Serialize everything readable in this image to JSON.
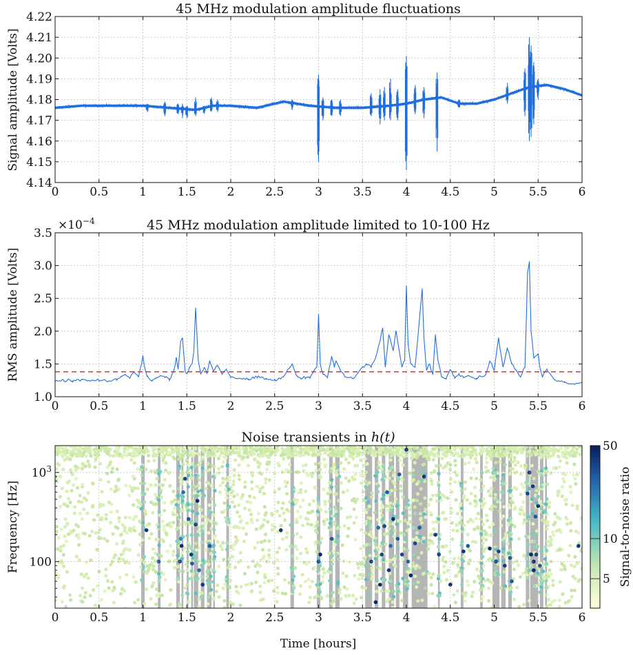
{
  "chart_data": [
    {
      "type": "line",
      "title": "45 MHz modulation amplitude fluctuations",
      "xlabel": "",
      "ylabel": "Signal amplitude [Volts]",
      "xlim": [
        0,
        6
      ],
      "ylim": [
        4.14,
        4.22
      ],
      "x_ticks": [
        "0",
        "0.5",
        "1",
        "1.5",
        "2",
        "2.5",
        "3",
        "3.5",
        "4",
        "4.5",
        "5",
        "5.5",
        "6"
      ],
      "y_ticks": [
        "4.14",
        "4.15",
        "4.16",
        "4.17",
        "4.18",
        "4.19",
        "4.20",
        "4.21",
        "4.22"
      ],
      "grid": true,
      "color": "#1f6fe0",
      "baseline": {
        "x": [
          0,
          0.3,
          0.6,
          0.8,
          1.0,
          1.3,
          1.6,
          1.8,
          2.0,
          2.3,
          2.6,
          2.9,
          3.2,
          3.5,
          3.8,
          4.0,
          4.2,
          4.4,
          4.6,
          4.8,
          5.0,
          5.2,
          5.4,
          5.6,
          5.8,
          6.0
        ],
        "y": [
          4.176,
          4.177,
          4.177,
          4.177,
          4.177,
          4.176,
          4.175,
          4.177,
          4.177,
          4.176,
          4.179,
          4.177,
          4.176,
          4.176,
          4.177,
          4.178,
          4.18,
          4.181,
          4.178,
          4.178,
          4.18,
          4.183,
          4.186,
          4.187,
          4.185,
          4.182
        ]
      },
      "band_width": 0.0012,
      "spikes": [
        {
          "x": 1.05,
          "min": 4.174,
          "max": 4.178
        },
        {
          "x": 1.25,
          "min": 4.172,
          "max": 4.179
        },
        {
          "x": 1.4,
          "min": 4.173,
          "max": 4.178
        },
        {
          "x": 1.45,
          "min": 4.171,
          "max": 4.178
        },
        {
          "x": 1.5,
          "min": 4.171,
          "max": 4.177
        },
        {
          "x": 1.6,
          "min": 4.172,
          "max": 4.181
        },
        {
          "x": 1.7,
          "min": 4.173,
          "max": 4.177
        },
        {
          "x": 1.78,
          "min": 4.174,
          "max": 4.181
        },
        {
          "x": 1.85,
          "min": 4.174,
          "max": 4.18
        },
        {
          "x": 2.7,
          "min": 4.175,
          "max": 4.18
        },
        {
          "x": 3.0,
          "min": 4.15,
          "max": 4.192
        },
        {
          "x": 3.05,
          "min": 4.17,
          "max": 4.181
        },
        {
          "x": 3.15,
          "min": 4.172,
          "max": 4.18
        },
        {
          "x": 3.25,
          "min": 4.172,
          "max": 4.18
        },
        {
          "x": 3.6,
          "min": 4.172,
          "max": 4.183
        },
        {
          "x": 3.7,
          "min": 4.168,
          "max": 4.185
        },
        {
          "x": 3.75,
          "min": 4.17,
          "max": 4.186
        },
        {
          "x": 3.82,
          "min": 4.17,
          "max": 4.19
        },
        {
          "x": 3.9,
          "min": 4.17,
          "max": 4.185
        },
        {
          "x": 4.0,
          "min": 4.146,
          "max": 4.201
        },
        {
          "x": 4.1,
          "min": 4.173,
          "max": 4.187
        },
        {
          "x": 4.2,
          "min": 4.171,
          "max": 4.186
        },
        {
          "x": 4.35,
          "min": 4.155,
          "max": 4.193
        },
        {
          "x": 4.6,
          "min": 4.176,
          "max": 4.18
        },
        {
          "x": 5.15,
          "min": 4.178,
          "max": 4.188
        },
        {
          "x": 5.35,
          "min": 4.172,
          "max": 4.195
        },
        {
          "x": 5.4,
          "min": 4.16,
          "max": 4.21
        },
        {
          "x": 5.42,
          "min": 4.162,
          "max": 4.206
        },
        {
          "x": 5.45,
          "min": 4.168,
          "max": 4.198
        },
        {
          "x": 5.5,
          "min": 4.18,
          "max": 4.19
        }
      ]
    },
    {
      "type": "line",
      "title": "45 MHz modulation amplitude limited to 10-100 Hz",
      "xlabel": "",
      "ylabel": "RMS amplitude [Volts]",
      "y_multiplier": "×10",
      "y_multiplier_exponent": "−4",
      "xlim": [
        0,
        6
      ],
      "ylim": [
        1.0,
        3.5
      ],
      "x_ticks": [
        "0",
        "0.5",
        "1",
        "1.5",
        "2",
        "2.5",
        "3",
        "3.5",
        "4",
        "4.5",
        "5",
        "5.5",
        "6"
      ],
      "y_ticks": [
        "1.0",
        "1.5",
        "2.0",
        "2.5",
        "3.0",
        "3.5"
      ],
      "grid": true,
      "color": "#1f6fe0",
      "threshold": {
        "value": 1.38,
        "color": "#e02020"
      },
      "x": [
        0,
        0.1,
        0.2,
        0.3,
        0.4,
        0.5,
        0.6,
        0.7,
        0.75,
        0.8,
        0.85,
        0.9,
        0.95,
        0.98,
        1.0,
        1.02,
        1.05,
        1.1,
        1.15,
        1.2,
        1.25,
        1.3,
        1.35,
        1.38,
        1.4,
        1.43,
        1.45,
        1.48,
        1.5,
        1.53,
        1.56,
        1.58,
        1.6,
        1.63,
        1.66,
        1.7,
        1.73,
        1.76,
        1.8,
        1.85,
        1.9,
        1.95,
        2.0,
        2.1,
        2.2,
        2.3,
        2.4,
        2.5,
        2.6,
        2.7,
        2.75,
        2.8,
        2.9,
        2.98,
        3.0,
        3.02,
        3.05,
        3.1,
        3.15,
        3.18,
        3.2,
        3.25,
        3.3,
        3.4,
        3.5,
        3.55,
        3.6,
        3.65,
        3.7,
        3.73,
        3.76,
        3.8,
        3.85,
        3.88,
        3.9,
        3.95,
        3.98,
        4.0,
        4.02,
        4.05,
        4.1,
        4.15,
        4.18,
        4.2,
        4.23,
        4.26,
        4.3,
        4.33,
        4.36,
        4.4,
        4.45,
        4.5,
        4.55,
        4.6,
        4.65,
        4.7,
        4.8,
        4.9,
        4.95,
        5.0,
        5.05,
        5.1,
        5.15,
        5.2,
        5.25,
        5.3,
        5.35,
        5.38,
        5.4,
        5.42,
        5.45,
        5.5,
        5.52,
        5.55,
        5.6,
        5.7,
        5.8,
        5.9,
        6.0
      ],
      "y": [
        1.23,
        1.25,
        1.24,
        1.26,
        1.24,
        1.25,
        1.23,
        1.27,
        1.3,
        1.34,
        1.28,
        1.38,
        1.3,
        1.48,
        1.63,
        1.45,
        1.3,
        1.25,
        1.28,
        1.32,
        1.3,
        1.27,
        1.38,
        1.6,
        1.42,
        1.85,
        1.9,
        1.4,
        1.35,
        1.45,
        1.5,
        1.7,
        2.35,
        1.55,
        1.35,
        1.45,
        1.35,
        1.55,
        1.4,
        1.48,
        1.35,
        1.42,
        1.3,
        1.28,
        1.26,
        1.3,
        1.27,
        1.25,
        1.3,
        1.5,
        1.32,
        1.28,
        1.3,
        1.45,
        2.25,
        1.5,
        1.35,
        1.3,
        1.62,
        1.45,
        1.55,
        1.4,
        1.3,
        1.28,
        1.45,
        1.5,
        1.45,
        1.6,
        1.85,
        2.05,
        1.45,
        1.95,
        1.7,
        2.0,
        1.85,
        1.45,
        1.55,
        2.7,
        1.8,
        1.5,
        1.45,
        2.2,
        2.65,
        1.9,
        1.4,
        1.5,
        1.35,
        1.95,
        1.55,
        1.3,
        1.28,
        1.42,
        1.3,
        1.35,
        1.3,
        1.32,
        1.28,
        1.33,
        1.55,
        1.4,
        1.9,
        1.45,
        1.75,
        1.5,
        1.4,
        1.3,
        1.45,
        2.9,
        3.05,
        2.0,
        1.6,
        1.65,
        1.45,
        1.3,
        1.42,
        1.25,
        1.22,
        1.2,
        1.22
      ]
    },
    {
      "type": "scatter",
      "title": "Noise transients in ",
      "title_math": "h(t)",
      "xlabel": "Time [hours]",
      "ylabel": "Frequency [Hz]",
      "xlim": [
        0,
        6
      ],
      "y_scale": "log",
      "ylim": [
        30,
        2000
      ],
      "x_ticks": [
        "0",
        "0.5",
        "1",
        "1.5",
        "2",
        "2.5",
        "3",
        "3.5",
        "4",
        "4.5",
        "5",
        "5.5",
        "6"
      ],
      "y_ticks": [
        {
          "label": "100",
          "value": 100
        },
        {
          "label": "10",
          "sup": "3",
          "value": 1000
        }
      ],
      "grid": true,
      "colorbar": {
        "label": "Signal-to-noise ratio",
        "ticks": [
          {
            "label": "5",
            "value": 5
          },
          {
            "label": "10",
            "value": 10
          },
          {
            "label": "50",
            "value": 50
          }
        ],
        "range": [
          3,
          50
        ],
        "colors": [
          "#ffffd9",
          "#c7e9b4",
          "#41b6c4",
          "#225ea8",
          "#081d58"
        ]
      },
      "vetoed_segments": [
        [
          0.98,
          1.02
        ],
        [
          1.17,
          1.2
        ],
        [
          1.38,
          1.42
        ],
        [
          1.44,
          1.46
        ],
        [
          1.5,
          1.52
        ],
        [
          1.55,
          1.57
        ],
        [
          1.58,
          1.63
        ],
        [
          1.66,
          1.7
        ],
        [
          1.73,
          1.78
        ],
        [
          1.8,
          1.82
        ],
        [
          1.95,
          1.98
        ],
        [
          2.68,
          2.72
        ],
        [
          2.98,
          3.02
        ],
        [
          3.12,
          3.16
        ],
        [
          3.19,
          3.24
        ],
        [
          3.53,
          3.61
        ],
        [
          3.64,
          3.68
        ],
        [
          3.72,
          3.76
        ],
        [
          3.8,
          3.86
        ],
        [
          3.88,
          3.92
        ],
        [
          3.96,
          4.02
        ],
        [
          4.06,
          4.24
        ],
        [
          4.36,
          4.38
        ],
        [
          4.62,
          4.65
        ],
        [
          4.84,
          4.87
        ],
        [
          4.98,
          5.06
        ],
        [
          5.08,
          5.13
        ],
        [
          5.16,
          5.2
        ],
        [
          5.36,
          5.4
        ],
        [
          5.41,
          5.5
        ],
        [
          5.52,
          5.56
        ],
        [
          5.58,
          5.6
        ]
      ],
      "loud_points": {
        "x": [
          1.04,
          1.18,
          1.42,
          1.44,
          1.46,
          1.55,
          1.56,
          1.6,
          1.62,
          1.64,
          1.68,
          1.76,
          1.43,
          1.52,
          1.48,
          2.57,
          3.0,
          3.02,
          3.15,
          3.6,
          3.65,
          3.72,
          3.78,
          3.8,
          3.82,
          3.85,
          3.9,
          3.95,
          4.0,
          4.02,
          4.05,
          4.1,
          4.15,
          4.2,
          3.7,
          3.75,
          3.92,
          4.5,
          4.37,
          4.65,
          4.7,
          4.95,
          5.05,
          5.12,
          5.18,
          5.38,
          5.42,
          5.44,
          5.45,
          5.47,
          5.48,
          5.4,
          5.5,
          5.52,
          5.96,
          5.45,
          5.02,
          5.2,
          3.68,
          4.33
        ],
        "y": [
          225,
          100,
          100,
          150,
          600,
          120,
          95,
          260,
          480,
          80,
          55,
          150,
          180,
          300,
          850,
          225,
          100,
          120,
          180,
          100,
          35,
          120,
          600,
          80,
          150,
          300,
          180,
          120,
          1800,
          100,
          70,
          160,
          240,
          900,
          55,
          250,
          950,
          55,
          120,
          130,
          150,
          140,
          130,
          90,
          110,
          580,
          120,
          700,
          100,
          320,
          120,
          1000,
          420,
          90,
          150,
          80,
          100,
          60,
          240,
          200
        ],
        "snr": [
          40,
          30,
          35,
          45,
          25,
          40,
          30,
          35,
          45,
          25,
          40,
          30,
          20,
          30,
          35,
          40,
          35,
          45,
          30,
          40,
          45,
          35,
          30,
          40,
          25,
          45,
          30,
          35,
          40,
          30,
          45,
          35,
          30,
          40,
          45,
          35,
          30,
          45,
          35,
          40,
          30,
          45,
          35,
          40,
          30,
          35,
          45,
          40,
          45,
          30,
          35,
          40,
          45,
          30,
          40,
          45,
          35,
          30,
          25,
          40
        ]
      },
      "background_density_note": ""
    }
  ]
}
